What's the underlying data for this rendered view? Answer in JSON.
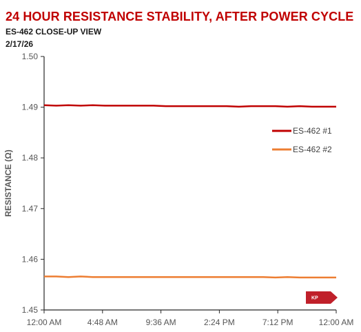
{
  "chart_data": {
    "type": "line",
    "title": "24 HOUR RESISTANCE STABILITY, AFTER POWER CYCLE",
    "subtitle": "ES-462 CLOSE-UP VIEW",
    "date": "2/17/26",
    "ylabel": "RESISTANCE (Ω)",
    "xlabel": "",
    "ylim": [
      1.45,
      1.5
    ],
    "yticks": [
      "1.50",
      "1.49",
      "1.48",
      "1.47",
      "1.46",
      "1.45"
    ],
    "xticks": [
      "12:00 AM",
      "4:48 AM",
      "9:36 AM",
      "2:24 PM",
      "7:12 PM",
      "12:00 AM"
    ],
    "x_hours": [
      0,
      1,
      2,
      3,
      4,
      5,
      6,
      7,
      8,
      9,
      10,
      11,
      12,
      13,
      14,
      15,
      16,
      17,
      18,
      19,
      20,
      21,
      22,
      23,
      24
    ],
    "series": [
      {
        "name": "ES-462 #1",
        "color": "#c00000",
        "values": [
          1.4904,
          1.4903,
          1.4904,
          1.4903,
          1.4904,
          1.4903,
          1.4903,
          1.4903,
          1.4903,
          1.4903,
          1.4902,
          1.4902,
          1.4902,
          1.4902,
          1.4902,
          1.4902,
          1.4901,
          1.4902,
          1.4902,
          1.4902,
          1.4901,
          1.4902,
          1.4901,
          1.4901,
          1.4901
        ]
      },
      {
        "name": "ES-462 #2",
        "color": "#ed7d31",
        "values": [
          1.4566,
          1.4566,
          1.4565,
          1.4566,
          1.4565,
          1.4565,
          1.4565,
          1.4565,
          1.4565,
          1.4565,
          1.4565,
          1.4565,
          1.4565,
          1.4565,
          1.4565,
          1.4565,
          1.4565,
          1.4565,
          1.4565,
          1.4564,
          1.4565,
          1.4564,
          1.4564,
          1.4564,
          1.4564
        ]
      }
    ],
    "legend": "right",
    "grid": false
  },
  "badge": {
    "text": "KP",
    "color": "#c0202a"
  }
}
